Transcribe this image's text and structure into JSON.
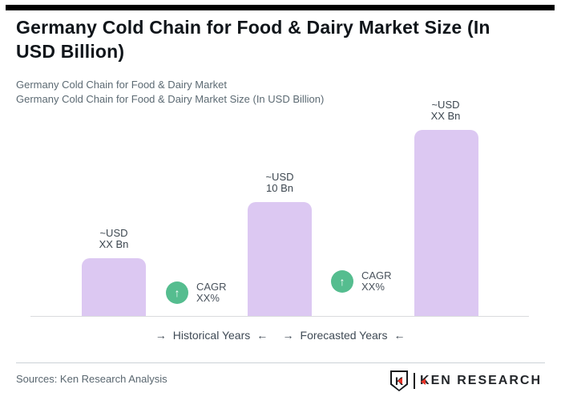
{
  "ui": {
    "icons": {
      "up_arrow": "↑",
      "right_arrow": "→",
      "left_arrow": "←"
    },
    "colors": {
      "top_bar": "#000000",
      "bar_fill": "#dcc8f2",
      "badge_green": "#55bd8f",
      "logo_red": "#e63327",
      "title_text": "#10151a",
      "subtitle_text": "#5c6a73"
    }
  },
  "header": {
    "title_lines": [
      "Germany Cold Chain for Food & Dairy Market Size (In",
      "USD Billion)"
    ],
    "subtitle_lines": [
      "Germany Cold Chain for Food & Dairy Market",
      "Germany Cold Chain for Food & Dairy Market Size (In USD Billion)"
    ]
  },
  "chart_data": {
    "type": "bar",
    "title": "Germany Cold Chain for Food & Dairy Market Size (In USD Billion)",
    "categories": [
      "Historical Years",
      "Historical Years",
      "Forecasted Years"
    ],
    "values": [
      5.1,
      10,
      16.3
    ],
    "unit": "USD Bn",
    "ylim": [
      0,
      18
    ],
    "grid": false,
    "legend_position": "none",
    "bar_labels": [
      [
        "~USD",
        "XX Bn"
      ],
      [
        "~USD",
        "10 Bn"
      ],
      [
        "~USD",
        "XX Bn"
      ]
    ],
    "cagr_badges": [
      [
        "CAGR",
        "XX%"
      ],
      [
        "CAGR",
        "XX%"
      ]
    ],
    "group_labels": [
      "Historical Years",
      "Forecasted Years"
    ]
  },
  "footer": {
    "sources": "Sources: Ken Research Analysis",
    "logo": {
      "emblem_letter": "K",
      "wordmark_k": "K",
      "wordmark_rest": "EN RESEARCH"
    }
  }
}
